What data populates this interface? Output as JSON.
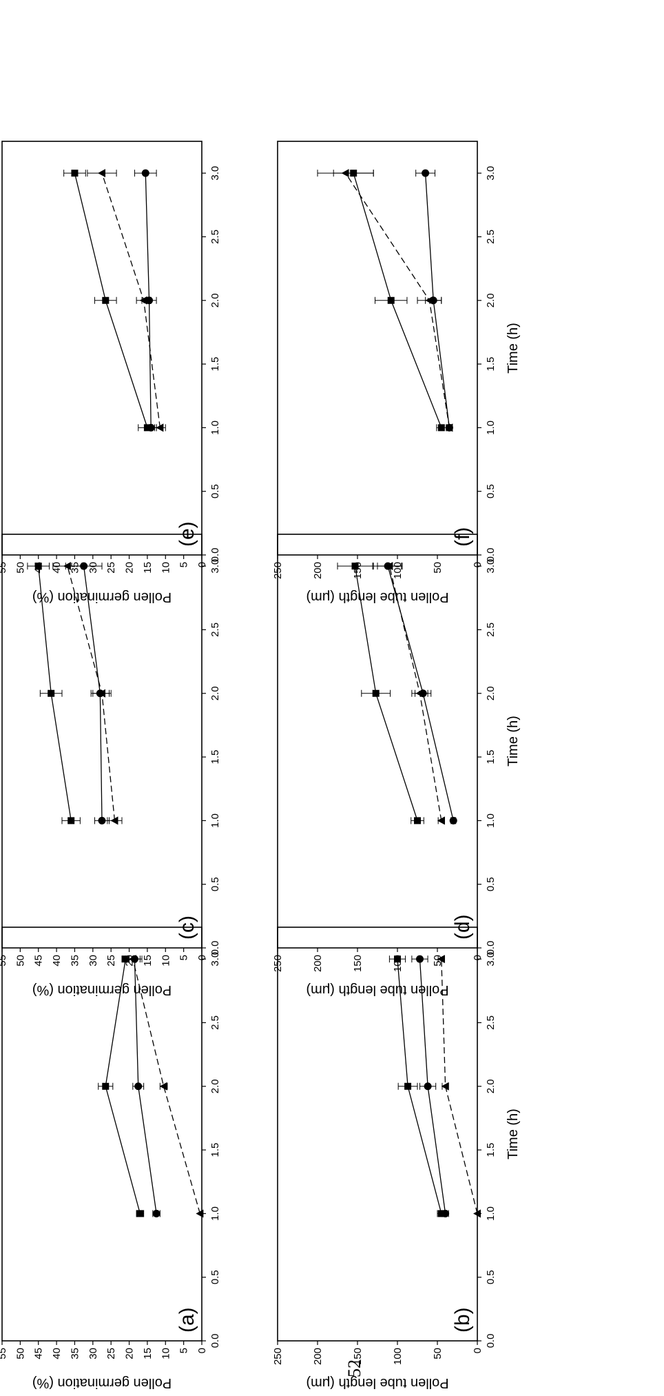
{
  "page_number": "52",
  "chart_data": [
    {
      "type": "line",
      "panel_label": "(a)",
      "xlabel": "",
      "ylabel": "Pollen germination (%)",
      "xlim": [
        0,
        3.25
      ],
      "ylim": [
        0,
        55
      ],
      "xticks": [
        "0.0",
        "0.5",
        "1.0",
        "1.5",
        "2.0",
        "2.5",
        "3.0"
      ],
      "yticks": [
        "0",
        "5",
        "10",
        "15",
        "20",
        "25",
        "30",
        "35",
        "40",
        "45",
        "50",
        "55"
      ],
      "x": [
        1.0,
        2.0,
        3.0
      ],
      "series": [
        {
          "marker": "square",
          "line": "solid",
          "values": [
            17,
            26.5,
            21
          ],
          "errors": [
            1,
            2,
            1
          ]
        },
        {
          "marker": "circle",
          "line": "solid",
          "values": [
            12.5,
            17.5,
            18.5
          ],
          "errors": [
            1,
            1.5,
            2
          ]
        },
        {
          "marker": "triangle",
          "line": "dashed",
          "values": [
            0.5,
            10.5,
            19
          ],
          "errors": [
            0,
            1,
            2
          ]
        }
      ]
    },
    {
      "type": "line",
      "panel_label": "(b)",
      "xlabel": "Time (h)",
      "ylabel": "Pollen tube length (μm)",
      "xlim": [
        0,
        3.25
      ],
      "ylim": [
        0,
        250
      ],
      "xticks": [
        "0.0",
        "0.5",
        "1.0",
        "1.5",
        "2.0",
        "2.5",
        "3.0"
      ],
      "yticks": [
        "0",
        "50",
        "100",
        "150",
        "200",
        "250"
      ],
      "x": [
        1.0,
        2.0,
        3.0
      ],
      "series": [
        {
          "marker": "square",
          "line": "solid",
          "values": [
            45,
            87,
            100
          ],
          "errors": [
            5,
            12,
            10
          ]
        },
        {
          "marker": "circle",
          "line": "solid",
          "values": [
            40,
            62,
            72
          ],
          "errors": [
            4,
            10,
            10
          ]
        },
        {
          "marker": "triangle",
          "line": "dashed",
          "values": [
            0,
            40,
            45
          ],
          "errors": [
            0,
            4,
            4
          ]
        }
      ]
    },
    {
      "type": "line",
      "panel_label": "(c)",
      "xlabel": "",
      "ylabel": "Pollen germination (%)",
      "xlim": [
        0,
        3.25
      ],
      "ylim": [
        0,
        55
      ],
      "xticks": [
        "0.0",
        "0.5",
        "1.0",
        "1.5",
        "2.0",
        "2.5",
        "3.0"
      ],
      "yticks": [
        "0",
        "5",
        "10",
        "15",
        "20",
        "25",
        "30",
        "35",
        "40",
        "45",
        "50",
        "55"
      ],
      "x": [
        1.0,
        2.0,
        3.0
      ],
      "series": [
        {
          "marker": "square",
          "line": "solid",
          "values": [
            36,
            41.5,
            45
          ],
          "errors": [
            2.5,
            3,
            3
          ]
        },
        {
          "marker": "circle",
          "line": "solid",
          "values": [
            27.5,
            28,
            32.5
          ],
          "errors": [
            2,
            2.5,
            5
          ]
        },
        {
          "marker": "triangle",
          "line": "dashed",
          "values": [
            24,
            27.5,
            37
          ],
          "errors": [
            2,
            2.5,
            4
          ]
        }
      ]
    },
    {
      "type": "line",
      "panel_label": "(d)",
      "xlabel": "Time (h)",
      "ylabel": "Pollen tube length (μm)",
      "xlim": [
        0,
        3.25
      ],
      "ylim": [
        0,
        250
      ],
      "xticks": [
        "0.0",
        "0.5",
        "1.0",
        "1.5",
        "2.0",
        "2.5",
        "3.0"
      ],
      "yticks": [
        "0",
        "50",
        "100",
        "150",
        "200",
        "250"
      ],
      "x": [
        1.0,
        2.0,
        3.0
      ],
      "series": [
        {
          "marker": "square",
          "line": "solid",
          "values": [
            75,
            127,
            153
          ],
          "errors": [
            8,
            18,
            22
          ]
        },
        {
          "marker": "circle",
          "line": "solid",
          "values": [
            30,
            68,
            112
          ],
          "errors": [
            3,
            10,
            18
          ]
        },
        {
          "marker": "triangle",
          "line": "dashed",
          "values": [
            45,
            72,
            110
          ],
          "errors": [
            4,
            10,
            15
          ]
        }
      ]
    },
    {
      "type": "line",
      "panel_label": "(e)",
      "xlabel": "",
      "ylabel": "Pollen germination (%)",
      "xlim": [
        0,
        3.25
      ],
      "ylim": [
        0,
        55
      ],
      "xticks": [
        "0.0",
        "0.5",
        "1.0",
        "1.5",
        "2.0",
        "2.5",
        "3.0"
      ],
      "yticks": [
        "0",
        "5",
        "10",
        "15",
        "20",
        "25",
        "30",
        "35",
        "40",
        "45",
        "50",
        "55"
      ],
      "x": [
        1.0,
        2.0,
        3.0
      ],
      "series": [
        {
          "marker": "square",
          "line": "solid",
          "values": [
            15,
            26.5,
            35
          ],
          "errors": [
            2.5,
            3,
            3
          ]
        },
        {
          "marker": "circle",
          "line": "solid",
          "values": [
            14,
            14.5,
            15.5
          ],
          "errors": [
            1.5,
            2,
            3
          ]
        },
        {
          "marker": "triangle",
          "line": "dashed",
          "values": [
            11.5,
            16,
            27.5
          ],
          "errors": [
            1.5,
            2,
            4
          ]
        }
      ]
    },
    {
      "type": "line",
      "panel_label": "(f)",
      "xlabel": "Time (h)",
      "ylabel": "Pollen tube length (μm)",
      "xlim": [
        0,
        3.25
      ],
      "ylim": [
        0,
        250
      ],
      "xticks": [
        "0.0",
        "0.5",
        "1.0",
        "1.5",
        "2.0",
        "2.5",
        "3.0"
      ],
      "yticks": [
        "0",
        "50",
        "100",
        "150",
        "200",
        "250"
      ],
      "x": [
        1.0,
        2.0,
        3.0
      ],
      "series": [
        {
          "marker": "square",
          "line": "solid",
          "values": [
            45,
            108,
            155
          ],
          "errors": [
            6,
            20,
            25
          ]
        },
        {
          "marker": "circle",
          "line": "solid",
          "values": [
            35,
            55,
            65
          ],
          "errors": [
            3,
            10,
            12
          ]
        },
        {
          "marker": "triangle",
          "line": "dashed",
          "values": [
            35,
            60,
            165
          ],
          "errors": [
            3,
            15,
            35
          ]
        }
      ]
    }
  ]
}
